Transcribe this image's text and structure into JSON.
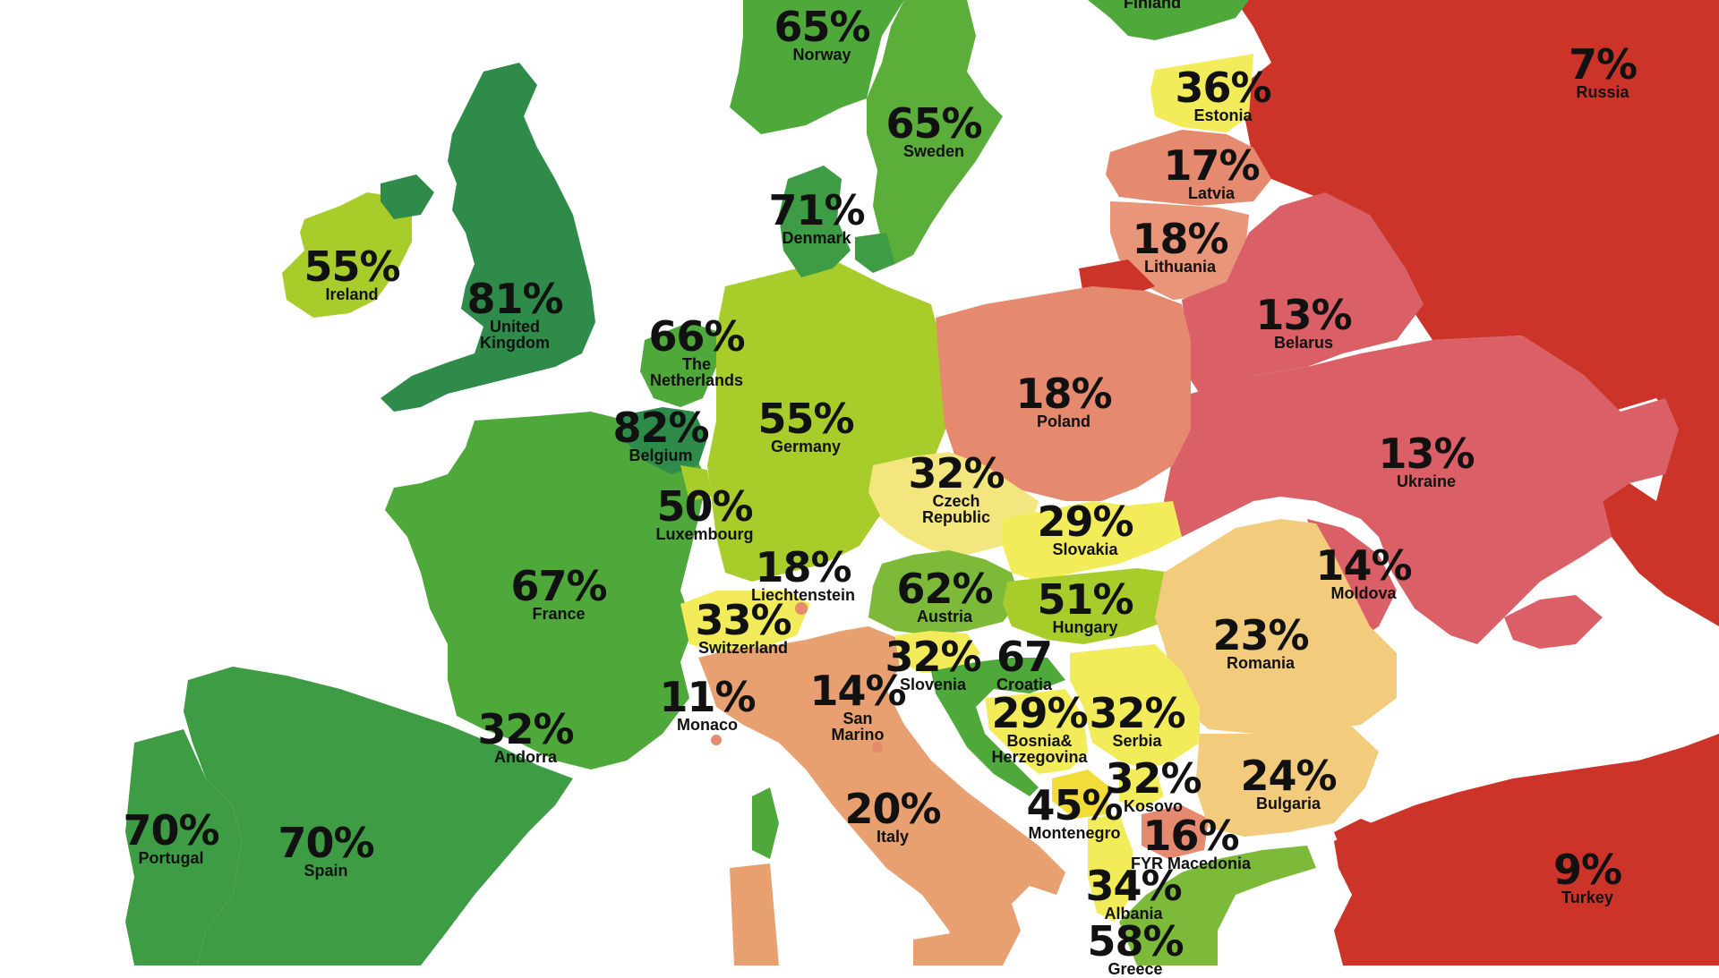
{
  "colors": {
    "dark_green": "#2E8B4A",
    "green": "#4FA83A",
    "light_green": "#7DBA3A",
    "yellow_green": "#A8CC2A",
    "yellow": "#F2EC5A",
    "light_yellow": "#F3E67F",
    "peach": "#F2CC7C",
    "orange": "#E8A070",
    "salmon": "#E58A6E",
    "pink_red": "#DB5F66",
    "red": "#CC342A"
  },
  "countries": [
    {
      "id": "finland",
      "name": "Finland",
      "pct": "",
      "color": "#4FA83A"
    },
    {
      "id": "norway",
      "name": "Norway",
      "pct": "65%",
      "color": "#4FA83A"
    },
    {
      "id": "sweden",
      "name": "Sweden",
      "pct": "65%",
      "color": "#5CAE3A"
    },
    {
      "id": "estonia",
      "name": "Estonia",
      "pct": "36%",
      "color": "#F2EC5A"
    },
    {
      "id": "russia",
      "name": "Russia",
      "pct": "7%",
      "color": "#CC342A"
    },
    {
      "id": "latvia",
      "name": "Latvia",
      "pct": "17%",
      "color": "#E58A6E"
    },
    {
      "id": "denmark",
      "name": "Denmark",
      "pct": "71%",
      "color": "#3E9C45"
    },
    {
      "id": "lithuania",
      "name": "Lithuania",
      "pct": "18%",
      "color": "#E8957A"
    },
    {
      "id": "ireland",
      "name": "Ireland",
      "pct": "55%",
      "color": "#A8CC2A"
    },
    {
      "id": "uk",
      "name": "United Kingdom",
      "pct": "81%",
      "color": "#2E8B4A"
    },
    {
      "id": "netherlands",
      "name": "The Netherlands",
      "pct": "66%",
      "color": "#4FA83A"
    },
    {
      "id": "belarus",
      "name": "Belarus",
      "pct": "13%",
      "color": "#DB5F66"
    },
    {
      "id": "poland",
      "name": "Poland",
      "pct": "18%",
      "color": "#E58A6E"
    },
    {
      "id": "belgium",
      "name": "Belgium",
      "pct": "82%",
      "color": "#2E8B4A"
    },
    {
      "id": "germany",
      "name": "Germany",
      "pct": "55%",
      "color": "#A8CC2A"
    },
    {
      "id": "ukraine",
      "name": "Ukraine",
      "pct": "13%",
      "color": "#DB5F66"
    },
    {
      "id": "czech",
      "name": "Czech Republic",
      "pct": "32%",
      "color": "#F3E67F"
    },
    {
      "id": "luxembourg",
      "name": "Luxembourg",
      "pct": "50%",
      "color": "#A8CC2A"
    },
    {
      "id": "slovakia",
      "name": "Slovakia",
      "pct": "29%",
      "color": "#F2EC5A"
    },
    {
      "id": "france",
      "name": "France",
      "pct": "67%",
      "color": "#4FA83A"
    },
    {
      "id": "liechtenstein",
      "name": "Liechtenstein",
      "pct": "18%",
      "color": "#E58A6E"
    },
    {
      "id": "austria",
      "name": "Austria",
      "pct": "62%",
      "color": "#7DBA3A"
    },
    {
      "id": "moldova",
      "name": "Moldova",
      "pct": "14%",
      "color": "#DB5F66"
    },
    {
      "id": "hungary",
      "name": "Hungary",
      "pct": "51%",
      "color": "#A8CC2A"
    },
    {
      "id": "switzerland",
      "name": "Switzerland",
      "pct": "33%",
      "color": "#F2EC5A"
    },
    {
      "id": "romania",
      "name": "Romania",
      "pct": "23%",
      "color": "#F2CC7C"
    },
    {
      "id": "slovenia",
      "name": "Slovenia",
      "pct": "32%",
      "color": "#F2EC5A"
    },
    {
      "id": "croatia",
      "name": "Croatia",
      "pct": "67",
      "color": "#4FA83A"
    },
    {
      "id": "monaco",
      "name": "Monaco",
      "pct": "11%",
      "color": "#E58A6E"
    },
    {
      "id": "san_marino",
      "name": "San Marino",
      "pct": "14%",
      "color": "#E58A6E"
    },
    {
      "id": "bosnia",
      "name": "Bosnia& Herzegovina",
      "pct": "29%",
      "color": "#F2EC5A"
    },
    {
      "id": "serbia",
      "name": "Serbia",
      "pct": "32%",
      "color": "#F2EC5A"
    },
    {
      "id": "andorra",
      "name": "Andorra",
      "pct": "32%",
      "color": "#F2EC5A"
    },
    {
      "id": "kosovo",
      "name": "Kosovo",
      "pct": "32%",
      "color": "#F2EC5A"
    },
    {
      "id": "bulgaria",
      "name": "Bulgaria",
      "pct": "24%",
      "color": "#F2CC7C"
    },
    {
      "id": "italy",
      "name": "Italy",
      "pct": "20%",
      "color": "#E8A070"
    },
    {
      "id": "montenegro",
      "name": "Montenegro",
      "pct": "45%",
      "color": "#F2DC3A"
    },
    {
      "id": "portugal",
      "name": "Portugal",
      "pct": "70%",
      "color": "#3E9C45"
    },
    {
      "id": "spain",
      "name": "Spain",
      "pct": "70%",
      "color": "#3E9C45"
    },
    {
      "id": "macedonia",
      "name": "FYR Macedonia",
      "pct": "16%",
      "color": "#E58A6E"
    },
    {
      "id": "turkey",
      "name": "Turkey",
      "pct": "9%",
      "color": "#CC342A"
    },
    {
      "id": "albania",
      "name": "Albania",
      "pct": "34%",
      "color": "#F2EC5A"
    },
    {
      "id": "greece",
      "name": "Greece",
      "pct": "58%",
      "color": "#7DBA3A"
    }
  ]
}
